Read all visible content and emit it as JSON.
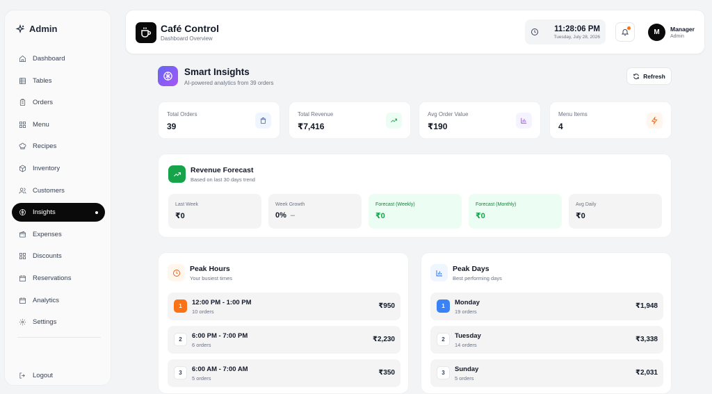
{
  "sidebar": {
    "brand": "Admin",
    "items": [
      {
        "label": "Dashboard",
        "icon": "home-icon"
      },
      {
        "label": "Tables",
        "icon": "table-icon"
      },
      {
        "label": "Orders",
        "icon": "clipboard-icon"
      },
      {
        "label": "Menu",
        "icon": "grid-icon"
      },
      {
        "label": "Recipes",
        "icon": "chef-hat-icon"
      },
      {
        "label": "Inventory",
        "icon": "package-icon"
      },
      {
        "label": "Customers",
        "icon": "users-icon"
      },
      {
        "label": "Insights",
        "icon": "brain-icon",
        "active": true
      },
      {
        "label": "Expenses",
        "icon": "wallet-icon"
      },
      {
        "label": "Discounts",
        "icon": "grid-icon"
      },
      {
        "label": "Reservations",
        "icon": "calendar-icon"
      },
      {
        "label": "Analytics",
        "icon": "calendar-icon"
      },
      {
        "label": "Settings",
        "icon": "gear-icon"
      }
    ],
    "logout": "Logout"
  },
  "header": {
    "title": "Café Control",
    "subtitle": "Dashboard Overview",
    "time": "11:28:06 PM",
    "date": "Tuesday, July 28, 2026",
    "user_initial": "M",
    "user_name": "Manager",
    "user_role": "Admin"
  },
  "insights": {
    "title": "Smart Insights",
    "subtitle": "AI-powered analytics from 39 orders",
    "refresh_label": "Refresh"
  },
  "stats": [
    {
      "label": "Total Orders",
      "value": "39",
      "icon": "shopping-bag-icon",
      "color": "#2563eb",
      "bg": "#eff6ff"
    },
    {
      "label": "Total Revenue",
      "value": "₹7,416",
      "icon": "trending-up-icon",
      "color": "#16a34a",
      "bg": "#ecfdf3"
    },
    {
      "label": "Avg Order Value",
      "value": "₹190",
      "icon": "bar-chart-icon",
      "color": "#9333ea",
      "bg": "#f5f3ff"
    },
    {
      "label": "Menu Items",
      "value": "4",
      "icon": "lightning-icon",
      "color": "#ea580c",
      "bg": "#fff7ed"
    }
  ],
  "forecast": {
    "title": "Revenue Forecast",
    "subtitle": "Based on last 30 days trend",
    "metrics": [
      {
        "label": "Last Week",
        "value": "₹0"
      },
      {
        "label": "Week Growth",
        "value": "0%",
        "trend": "–"
      },
      {
        "label": "Forecast (Weekly)",
        "value": "₹0"
      },
      {
        "label": "Forecast (Monthly)",
        "value": "₹0"
      },
      {
        "label": "Avg Daily",
        "value": "₹0"
      }
    ]
  },
  "peak_hours": {
    "title": "Peak Hours",
    "subtitle": "Your busiest times",
    "rows": [
      {
        "rank": "1",
        "label": "12:00 PM - 1:00 PM",
        "sub": "10 orders",
        "value": "₹950"
      },
      {
        "rank": "2",
        "label": "6:00 PM - 7:00 PM",
        "sub": "6 orders",
        "value": "₹2,230"
      },
      {
        "rank": "3",
        "label": "6:00 AM - 7:00 AM",
        "sub": "5 orders",
        "value": "₹350"
      }
    ]
  },
  "peak_days": {
    "title": "Peak Days",
    "subtitle": "Best performing days",
    "rows": [
      {
        "rank": "1",
        "label": "Monday",
        "sub": "19 orders",
        "value": "₹1,948"
      },
      {
        "rank": "2",
        "label": "Tuesday",
        "sub": "14 orders",
        "value": "₹3,338"
      },
      {
        "rank": "3",
        "label": "Sunday",
        "sub": "5 orders",
        "value": "₹2,031"
      }
    ]
  }
}
